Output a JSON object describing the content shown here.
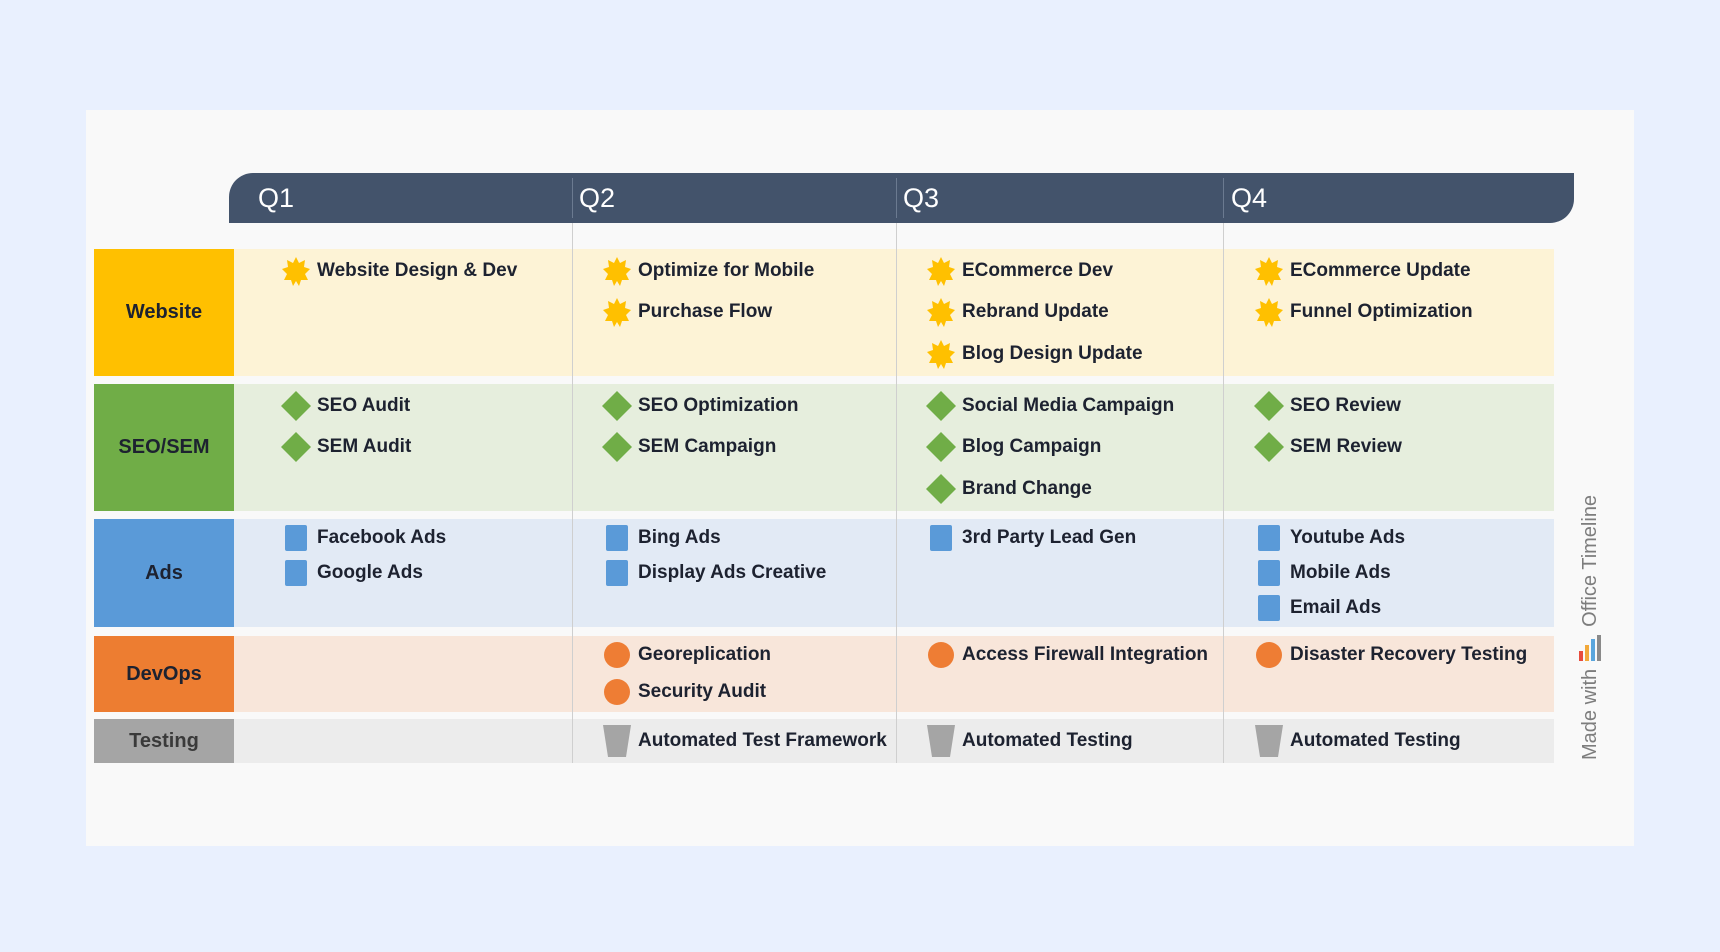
{
  "quarters": [
    "Q1",
    "Q2",
    "Q3",
    "Q4"
  ],
  "lanes": [
    {
      "label": "Website",
      "color": "#ffc000",
      "bg": "#fdf3d6"
    },
    {
      "label": "SEO/SEM",
      "color": "#70ad47",
      "bg": "#e6eedd"
    },
    {
      "label": "Ads",
      "color": "#5a9ad8",
      "bg": "#e2eaf5"
    },
    {
      "label": "DevOps",
      "color": "#ed7d31",
      "bg": "#f8e6da"
    },
    {
      "label": "Testing",
      "color": "#a5a5a5",
      "bg": "#ececec"
    }
  ],
  "items": {
    "website": {
      "q1": [
        "Website Design & Dev"
      ],
      "q2": [
        "Optimize for Mobile",
        "Purchase Flow"
      ],
      "q3": [
        "ECommerce Dev",
        "Rebrand Update",
        "Blog Design Update"
      ],
      "q4": [
        "ECommerce Update",
        "Funnel Optimization"
      ]
    },
    "seo": {
      "q1": [
        "SEO Audit",
        "SEM Audit"
      ],
      "q2": [
        "SEO Optimization",
        "SEM Campaign"
      ],
      "q3": [
        "Social Media Campaign",
        "Blog Campaign",
        "Brand Change"
      ],
      "q4": [
        "SEO Review",
        "SEM Review"
      ]
    },
    "ads": {
      "q1": [
        "Facebook Ads",
        "Google Ads"
      ],
      "q2": [
        "Bing Ads",
        "Display Ads Creative"
      ],
      "q3": [
        "3rd Party Lead Gen"
      ],
      "q4": [
        "Youtube Ads",
        "Mobile Ads",
        "Email Ads"
      ]
    },
    "devops": {
      "q2": [
        "Georeplication",
        "Security Audit"
      ],
      "q3": [
        "Access Firewall Integration"
      ],
      "q4": [
        "Disaster Recovery Testing"
      ]
    },
    "testing": {
      "q2": [
        "Automated Test Framework"
      ],
      "q3": [
        "Automated Testing"
      ],
      "q4": [
        "Automated Testing"
      ]
    }
  },
  "icons": {
    "website": "star-burst-icon",
    "seo": "diamond-icon",
    "ads": "square-icon",
    "devops": "circle-icon",
    "testing": "trapezoid-icon"
  },
  "branding": {
    "made_with": "Made with",
    "brand": "Office Timeline"
  }
}
